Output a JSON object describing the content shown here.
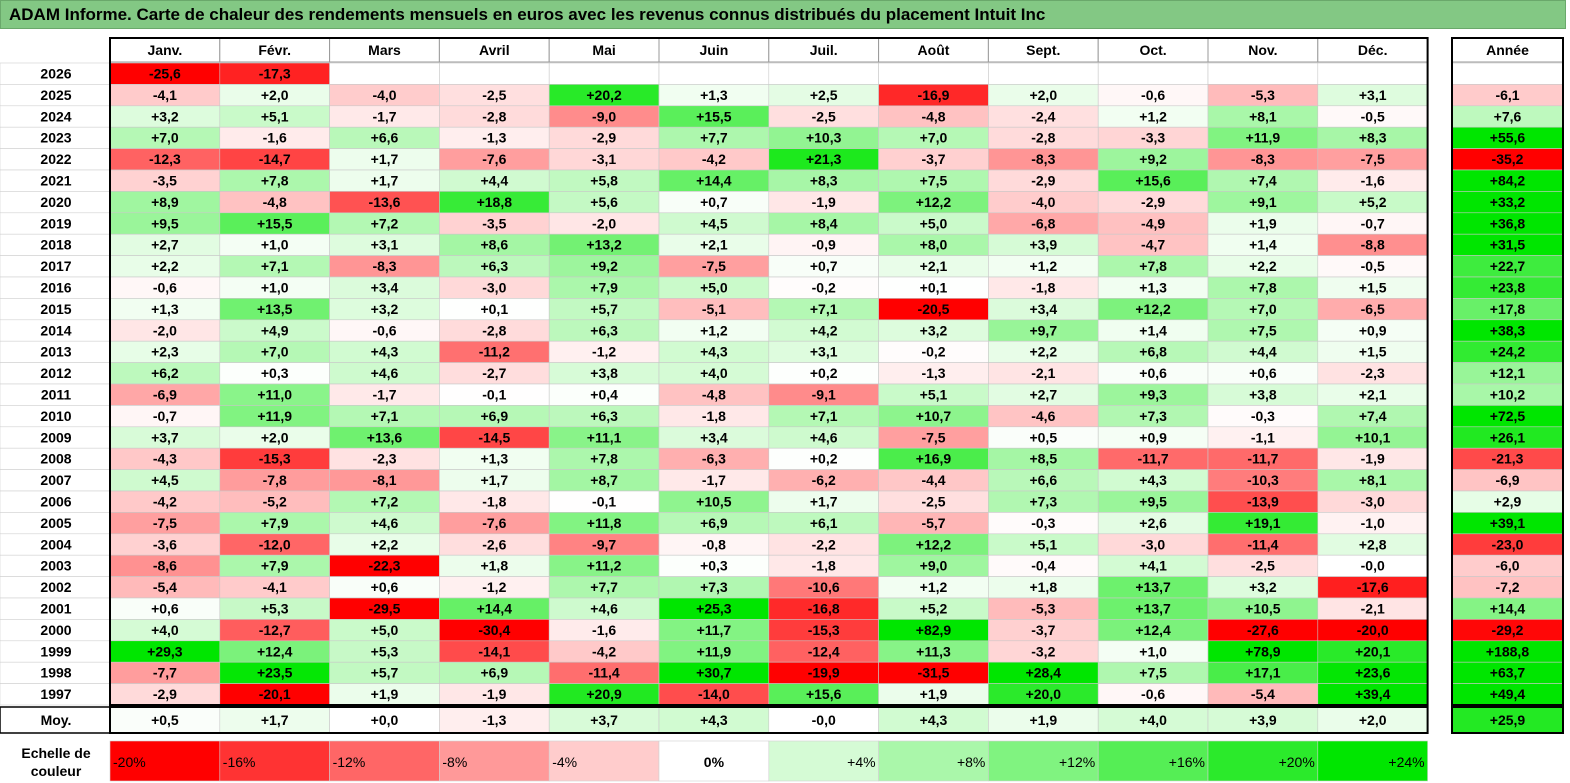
{
  "title": "ADAM Informe. Carte de chaleur des rendements mensuels en euros avec les revenus connus distribués du placement Intuit Inc",
  "chart_data": {
    "type": "heatmap",
    "columns": [
      "Janv.",
      "Févr.",
      "Mars",
      "Avril",
      "Mai",
      "Juin",
      "Juil.",
      "Août",
      "Sept.",
      "Oct.",
      "Nov.",
      "Déc."
    ],
    "year_column_label": "Année",
    "rows": [
      {
        "label": "2026",
        "values": [
          "-25,6",
          "-17,3",
          "",
          "",
          "",
          "",
          "",
          "",
          "",
          "",
          "",
          ""
        ],
        "year": ""
      },
      {
        "label": "2025",
        "values": [
          "-4,1",
          "+2,0",
          "-4,0",
          "-2,5",
          "+20,2",
          "+1,3",
          "+2,5",
          "-16,9",
          "+2,0",
          "-0,6",
          "-5,3",
          "+3,1"
        ],
        "year": "-6,1"
      },
      {
        "label": "2024",
        "values": [
          "+3,2",
          "+5,1",
          "-1,7",
          "-2,8",
          "-9,0",
          "+15,5",
          "-2,5",
          "-4,8",
          "-2,4",
          "+1,2",
          "+8,1",
          "-0,5"
        ],
        "year": "+7,6"
      },
      {
        "label": "2023",
        "values": [
          "+7,0",
          "-1,6",
          "+6,6",
          "-1,3",
          "-2,9",
          "+7,7",
          "+10,3",
          "+7,0",
          "-2,8",
          "-3,3",
          "+11,9",
          "+8,3"
        ],
        "year": "+55,6"
      },
      {
        "label": "2022",
        "values": [
          "-12,3",
          "-14,7",
          "+1,7",
          "-7,6",
          "-3,1",
          "-4,2",
          "+21,3",
          "-3,7",
          "-8,3",
          "+9,2",
          "-8,3",
          "-7,5"
        ],
        "year": "-35,2"
      },
      {
        "label": "2021",
        "values": [
          "-3,5",
          "+7,8",
          "+1,7",
          "+4,4",
          "+5,8",
          "+14,4",
          "+8,3",
          "+7,5",
          "-2,9",
          "+15,6",
          "+7,4",
          "-1,6"
        ],
        "year": "+84,2"
      },
      {
        "label": "2020",
        "values": [
          "+8,9",
          "-4,8",
          "-13,6",
          "+18,8",
          "+5,6",
          "+0,7",
          "-1,9",
          "+12,2",
          "-4,0",
          "-2,9",
          "+9,1",
          "+5,2"
        ],
        "year": "+33,2"
      },
      {
        "label": "2019",
        "values": [
          "+9,5",
          "+15,5",
          "+7,2",
          "-3,5",
          "-2,0",
          "+4,5",
          "+8,4",
          "+5,0",
          "-6,8",
          "-4,9",
          "+1,9",
          "-0,7"
        ],
        "year": "+36,8"
      },
      {
        "label": "2018",
        "values": [
          "+2,7",
          "+1,0",
          "+3,1",
          "+8,6",
          "+13,2",
          "+2,1",
          "-0,9",
          "+8,0",
          "+3,9",
          "-4,7",
          "+1,4",
          "-8,8"
        ],
        "year": "+31,5"
      },
      {
        "label": "2017",
        "values": [
          "+2,2",
          "+7,1",
          "-8,3",
          "+6,3",
          "+9,2",
          "-7,5",
          "+0,7",
          "+2,1",
          "+1,2",
          "+7,8",
          "+2,2",
          "-0,5"
        ],
        "year": "+22,7"
      },
      {
        "label": "2016",
        "values": [
          "-0,6",
          "+1,0",
          "+3,4",
          "-3,0",
          "+7,9",
          "+5,0",
          "-0,2",
          "+0,1",
          "-1,8",
          "+1,3",
          "+7,8",
          "+1,5"
        ],
        "year": "+23,8"
      },
      {
        "label": "2015",
        "values": [
          "+1,3",
          "+13,5",
          "+3,2",
          "+0,1",
          "+5,7",
          "-5,1",
          "+7,1",
          "-20,5",
          "+3,4",
          "+12,2",
          "+7,0",
          "-6,5"
        ],
        "year": "+17,8"
      },
      {
        "label": "2014",
        "values": [
          "-2,0",
          "+4,9",
          "-0,6",
          "-2,8",
          "+6,3",
          "+1,2",
          "+4,2",
          "+3,2",
          "+9,7",
          "+1,4",
          "+7,5",
          "+0,9"
        ],
        "year": "+38,3"
      },
      {
        "label": "2013",
        "values": [
          "+2,3",
          "+7,0",
          "+4,3",
          "-11,2",
          "-1,2",
          "+4,3",
          "+3,1",
          "-0,2",
          "+2,2",
          "+6,8",
          "+4,4",
          "+1,5"
        ],
        "year": "+24,2"
      },
      {
        "label": "2012",
        "values": [
          "+6,2",
          "+0,3",
          "+4,6",
          "-2,7",
          "+3,8",
          "+4,0",
          "+0,2",
          "-1,3",
          "-2,1",
          "+0,6",
          "+0,6",
          "-2,3"
        ],
        "year": "+12,1"
      },
      {
        "label": "2011",
        "values": [
          "-6,9",
          "+11,0",
          "-1,7",
          "-0,1",
          "+0,4",
          "-4,8",
          "-9,1",
          "+5,1",
          "+2,7",
          "+9,3",
          "+3,8",
          "+2,1"
        ],
        "year": "+10,2"
      },
      {
        "label": "2010",
        "values": [
          "-0,7",
          "+11,9",
          "+7,1",
          "+6,9",
          "+6,3",
          "-1,8",
          "+7,1",
          "+10,7",
          "-4,6",
          "+7,3",
          "-0,3",
          "+7,4"
        ],
        "year": "+72,5"
      },
      {
        "label": "2009",
        "values": [
          "+3,7",
          "+2,0",
          "+13,6",
          "-14,5",
          "+11,1",
          "+3,4",
          "+4,6",
          "-7,5",
          "+0,5",
          "+0,9",
          "-1,1",
          "+10,1"
        ],
        "year": "+26,1"
      },
      {
        "label": "2008",
        "values": [
          "-4,3",
          "-15,3",
          "-2,3",
          "+1,3",
          "+7,8",
          "-6,3",
          "+0,2",
          "+16,9",
          "+8,5",
          "-11,7",
          "-11,7",
          "-1,9"
        ],
        "year": "-21,3"
      },
      {
        "label": "2007",
        "values": [
          "+4,5",
          "-7,8",
          "-8,1",
          "+1,7",
          "+8,7",
          "-1,7",
          "-6,2",
          "-4,4",
          "+6,6",
          "+4,3",
          "-10,3",
          "+8,1"
        ],
        "year": "-6,9"
      },
      {
        "label": "2006",
        "values": [
          "-4,2",
          "-5,2",
          "+7,2",
          "-1,8",
          "-0,1",
          "+10,5",
          "+1,7",
          "-2,5",
          "+7,3",
          "+9,5",
          "-13,9",
          "-3,0"
        ],
        "year": "+2,9"
      },
      {
        "label": "2005",
        "values": [
          "-7,5",
          "+7,9",
          "+4,6",
          "-7,6",
          "+11,8",
          "+6,9",
          "+6,1",
          "-5,7",
          "-0,3",
          "+2,6",
          "+19,1",
          "-1,0"
        ],
        "year": "+39,1"
      },
      {
        "label": "2004",
        "values": [
          "-3,6",
          "-12,0",
          "+2,2",
          "-2,6",
          "-9,7",
          "-0,8",
          "-2,2",
          "+12,2",
          "+5,1",
          "-3,0",
          "-11,4",
          "+2,8"
        ],
        "year": "-23,0"
      },
      {
        "label": "2003",
        "values": [
          "-8,6",
          "+7,9",
          "-22,3",
          "+1,8",
          "+11,2",
          "+0,3",
          "-1,8",
          "+9,0",
          "-0,4",
          "+4,1",
          "-2,5",
          "-0,0"
        ],
        "year": "-6,0"
      },
      {
        "label": "2002",
        "values": [
          "-5,4",
          "-4,1",
          "+0,6",
          "-1,2",
          "+7,7",
          "+7,3",
          "-10,6",
          "+1,2",
          "+1,8",
          "+13,7",
          "+3,2",
          "-17,6"
        ],
        "year": "-7,2"
      },
      {
        "label": "2001",
        "values": [
          "+0,6",
          "+5,3",
          "-29,5",
          "+14,4",
          "+4,6",
          "+25,3",
          "-16,8",
          "+5,2",
          "-5,3",
          "+13,7",
          "+10,5",
          "-2,1"
        ],
        "year": "+14,4"
      },
      {
        "label": "2000",
        "values": [
          "+4,0",
          "-12,7",
          "+5,0",
          "-30,4",
          "-1,6",
          "+11,7",
          "-15,3",
          "+82,9",
          "-3,7",
          "+12,4",
          "-27,6",
          "-20,0"
        ],
        "year": "-29,2"
      },
      {
        "label": "1999",
        "values": [
          "+29,3",
          "+12,4",
          "+5,3",
          "-14,1",
          "-4,2",
          "+11,9",
          "-12,4",
          "+11,3",
          "-3,2",
          "+1,0",
          "+78,9",
          "+20,1"
        ],
        "year": "+188,8"
      },
      {
        "label": "1998",
        "values": [
          "-7,7",
          "+23,5",
          "+5,7",
          "+6,9",
          "-11,4",
          "+30,7",
          "-19,9",
          "-31,5",
          "+28,4",
          "+7,5",
          "+17,1",
          "+23,6"
        ],
        "year": "+63,7"
      },
      {
        "label": "1997",
        "values": [
          "-2,9",
          "-20,1",
          "+1,9",
          "-1,9",
          "+20,9",
          "-14,0",
          "+15,6",
          "+1,9",
          "+20,0",
          "-0,6",
          "-5,4",
          "+39,4"
        ],
        "year": "+49,4"
      }
    ],
    "average": {
      "label": "Moy.",
      "values": [
        "+0,5",
        "+1,7",
        "+0,0",
        "-1,3",
        "+3,7",
        "+4,3",
        "-0,0",
        "+4,3",
        "+1,9",
        "+4,0",
        "+3,9",
        "+2,0"
      ],
      "year": "+25,9"
    },
    "scale": {
      "label_line1": "Echelle de",
      "label_line2": "couleur",
      "steps": [
        "-20%",
        "-16%",
        "-12%",
        "-8%",
        "-4%",
        "0%",
        "+4%",
        "+8%",
        "+12%",
        "+16%",
        "+20%",
        "+24%"
      ]
    },
    "colors": {
      "negative_max": "#ff0000",
      "neutral": "#ffffff",
      "positive_max": "#00e600",
      "title_bar": "#83c884"
    }
  }
}
